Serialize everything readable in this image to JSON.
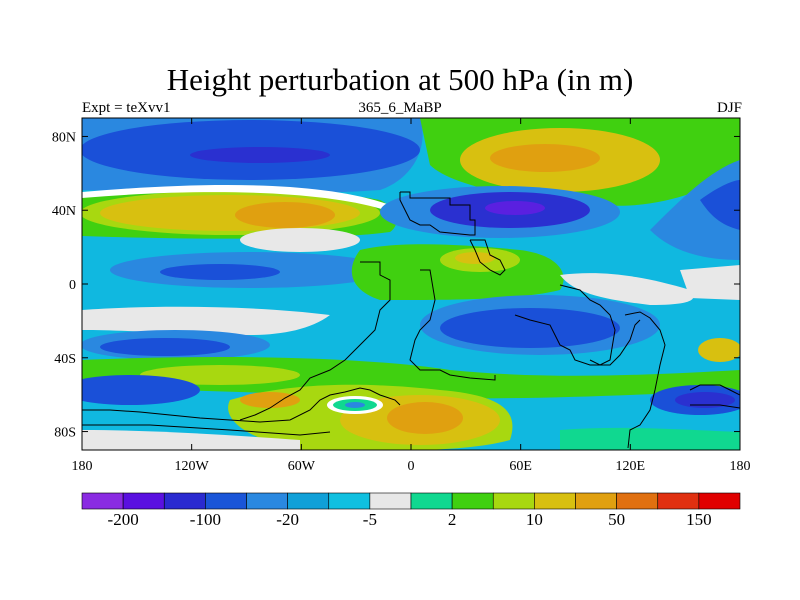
{
  "title": "Height perturbation at 500 hPa (in m)",
  "left_title": "Expt = teXvv1",
  "center_title": "365_6_MaBP",
  "right_title": "DJF",
  "x_ticks": [
    {
      "lon": -180,
      "label": "180"
    },
    {
      "lon": -120,
      "label": "120W"
    },
    {
      "lon": -60,
      "label": "60W"
    },
    {
      "lon": 0,
      "label": "0"
    },
    {
      "lon": 60,
      "label": "60E"
    },
    {
      "lon": 120,
      "label": "120E"
    },
    {
      "lon": 180,
      "label": "180"
    }
  ],
  "y_ticks": [
    {
      "lat": 80,
      "label": "80N"
    },
    {
      "lat": 40,
      "label": "40N"
    },
    {
      "lat": 0,
      "label": "0"
    },
    {
      "lat": -40,
      "label": "40S"
    },
    {
      "lat": -80,
      "label": "80S"
    }
  ],
  "colorbar": {
    "colors": [
      "#8a2be2",
      "#5a10e0",
      "#2a2ad0",
      "#1a55d8",
      "#2a88e0",
      "#10a0d8",
      "#10c0e0",
      "#e8e8e8",
      "#10d890",
      "#40d010",
      "#a8d810",
      "#d8c010",
      "#e0a010",
      "#e07010",
      "#e03010",
      "#e00000"
    ],
    "labels": [
      {
        "index": 1,
        "text": "-200"
      },
      {
        "index": 3,
        "text": "-100"
      },
      {
        "index": 5,
        "text": "-20"
      },
      {
        "index": 7,
        "text": "-5"
      },
      {
        "index": 9,
        "text": "2"
      },
      {
        "index": 11,
        "text": "10"
      },
      {
        "index": 13,
        "text": "50"
      },
      {
        "index": 15,
        "text": "150"
      }
    ]
  },
  "map_colors": {
    "neutral": "#e8e8e8",
    "deep_blue": "#1a50d8",
    "dark_blue": "#2a30d0",
    "purple": "#5a20e0",
    "mid_blue": "#2a88e0",
    "cyan": "#10b8e0",
    "green_light": "#10d890",
    "green": "#40d010",
    "yellow_green": "#a8d810",
    "yellow": "#d8c010",
    "orange": "#e0a010",
    "dark_orange": "#e07010"
  }
}
